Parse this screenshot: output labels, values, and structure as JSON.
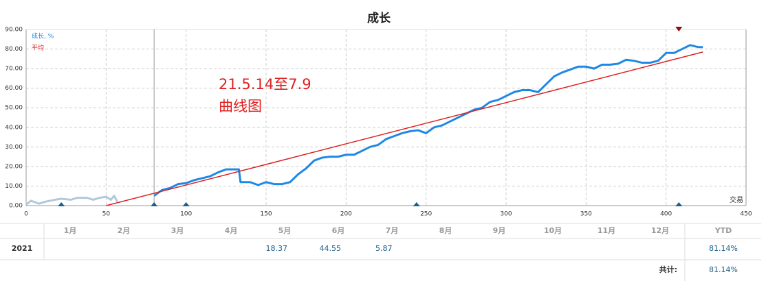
{
  "chart_data": {
    "type": "line",
    "title": "成长",
    "x_label": "交易",
    "xlim": [
      0,
      450
    ],
    "xticks": [
      0,
      50,
      100,
      150,
      200,
      250,
      300,
      350,
      400,
      450
    ],
    "ylim": [
      0,
      90
    ],
    "yticks": [
      {
        "value": 0,
        "label": "0.00"
      },
      {
        "value": 10,
        "label": "10.00"
      },
      {
        "value": 20,
        "label": "20.00"
      },
      {
        "value": 30,
        "label": "30.00"
      },
      {
        "value": 40,
        "label": "40.00"
      },
      {
        "value": 50,
        "label": "50.00"
      },
      {
        "value": 60,
        "label": "60.00"
      },
      {
        "value": 70,
        "label": "70.00"
      },
      {
        "value": 80,
        "label": "80.00"
      },
      {
        "value": 90,
        "label": "90.00"
      }
    ],
    "grid": true,
    "vline": 80,
    "bottom_markers": [
      22,
      80,
      100,
      244,
      408
    ],
    "bottom_marker_color": "#1a5e8a",
    "top_marker": 408,
    "top_marker_color": "#8b1010",
    "series": [
      {
        "name": "成长, %",
        "color": "#1e88e5",
        "x": [
          80,
          85,
          90,
          95,
          100,
          105,
          110,
          115,
          120,
          125,
          130,
          133,
          134,
          140,
          145,
          150,
          155,
          160,
          165,
          170,
          175,
          180,
          185,
          190,
          195,
          200,
          205,
          210,
          215,
          220,
          225,
          230,
          235,
          240,
          245,
          250,
          255,
          260,
          265,
          270,
          275,
          280,
          285,
          290,
          295,
          300,
          305,
          310,
          315,
          320,
          325,
          330,
          335,
          340,
          345,
          350,
          355,
          360,
          365,
          370,
          375,
          380,
          385,
          390,
          395,
          400,
          405,
          410,
          415,
          420,
          423
        ],
        "values": [
          5,
          8,
          9,
          11,
          11.5,
          13,
          14,
          15,
          17,
          18.5,
          18.5,
          18.5,
          12,
          12,
          10.5,
          12,
          11,
          11,
          12,
          16,
          19,
          23,
          24.5,
          25,
          25,
          26,
          26,
          28,
          30,
          31,
          34,
          35.5,
          37,
          38,
          38.5,
          37,
          40,
          41,
          43,
          45,
          47,
          49,
          50,
          53,
          54,
          56,
          58,
          59,
          59,
          58,
          62,
          66,
          68,
          69.5,
          71,
          71,
          70,
          72,
          72,
          72.5,
          74.5,
          74,
          73,
          73,
          74,
          78,
          78,
          80,
          82,
          81,
          81
        ]
      },
      {
        "color": "#b0c8dc",
        "x": [
          0,
          3,
          8,
          12,
          18,
          22,
          28,
          32,
          38,
          42,
          46,
          50,
          53,
          55,
          57
        ],
        "values": [
          0.5,
          2.5,
          1,
          2,
          3,
          3.5,
          3,
          4,
          4,
          3,
          4,
          4.5,
          3,
          5,
          2
        ]
      },
      {
        "name": "平均",
        "color": "#dd2222",
        "x": [
          50,
          423
        ],
        "values": [
          0,
          78.5
        ]
      }
    ],
    "annotations": [
      "21.5.14至7.9",
      "曲线图"
    ],
    "annotation_color": "#e02020"
  },
  "table": {
    "columns": [
      "1月",
      "2月",
      "3月",
      "4月",
      "5月",
      "6月",
      "7月",
      "8月",
      "9月",
      "10月",
      "11月",
      "12月"
    ],
    "ytd_header": "YTD",
    "rows": [
      {
        "year": "2021",
        "cells": [
          null,
          null,
          null,
          null,
          "18.37",
          "44.55",
          "5.87",
          null,
          null,
          null,
          null,
          null
        ],
        "ytd": "81.14%"
      }
    ],
    "total_label": "共计:",
    "total": "81.14%"
  }
}
